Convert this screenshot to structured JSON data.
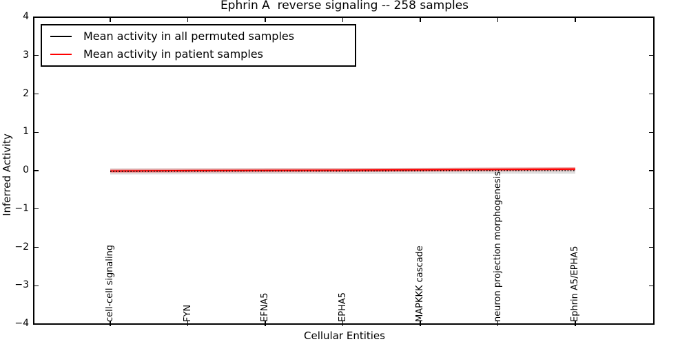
{
  "chart_data": {
    "type": "line",
    "title": "Ephrin A  reverse signaling -- 258 samples",
    "xlabel": "Cellular Entities",
    "ylabel": "Inferred Activity",
    "ylim": [
      -4,
      4
    ],
    "yticks": [
      4,
      3,
      2,
      1,
      0,
      -1,
      -2,
      -3,
      -4
    ],
    "ytick_labels": [
      "4",
      "3",
      "2",
      "1",
      "0",
      "−1",
      "−2",
      "−3",
      "−4"
    ],
    "categories": [
      "cell-cell signaling",
      "FYN",
      "EFNA5",
      "EPHA5",
      "MAPKKK cascade",
      "neuron projection morphogenesis",
      "Ephrin A5/EPHA5"
    ],
    "grid": false,
    "legend_position": "upper left",
    "series": [
      {
        "name": "Mean activity in all permuted samples",
        "color": "#000000",
        "linestyle": "dotted",
        "values": [
          -0.02,
          -0.015,
          -0.01,
          -0.01,
          -0.005,
          0.0,
          0.0
        ],
        "band_halfwidth": 0.08,
        "band_color": "rgba(0,0,0,0.13)"
      },
      {
        "name": "Mean activity in patient samples",
        "color": "#ff0000",
        "linestyle": "solid",
        "values": [
          -0.01,
          0.0,
          0.005,
          0.01,
          0.02,
          0.03,
          0.04
        ],
        "band_halfwidth": 0.05,
        "band_color": "rgba(255,0,0,0.28)"
      }
    ]
  },
  "legend": {
    "items": [
      {
        "label": "Mean activity in all permuted samples",
        "color": "#000000"
      },
      {
        "label": "Mean activity in patient samples",
        "color": "#ff0000"
      }
    ]
  }
}
